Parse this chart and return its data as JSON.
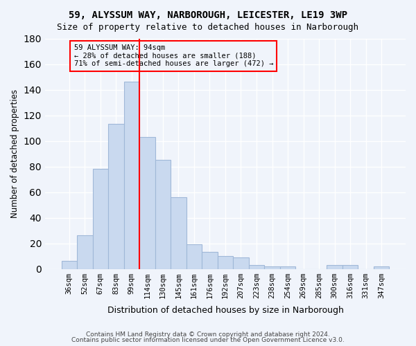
{
  "title1": "59, ALYSSUM WAY, NARBOROUGH, LEICESTER, LE19 3WP",
  "title2": "Size of property relative to detached houses in Narborough",
  "xlabel": "Distribution of detached houses by size in Narborough",
  "ylabel": "Number of detached properties",
  "bar_labels": [
    "36sqm",
    "52sqm",
    "67sqm",
    "83sqm",
    "99sqm",
    "114sqm",
    "130sqm",
    "145sqm",
    "161sqm",
    "176sqm",
    "192sqm",
    "207sqm",
    "223sqm",
    "238sqm",
    "254sqm",
    "269sqm",
    "285sqm",
    "300sqm",
    "316sqm",
    "331sqm",
    "347sqm"
  ],
  "bar_values": [
    6,
    26,
    78,
    113,
    146,
    103,
    85,
    56,
    19,
    13,
    10,
    9,
    3,
    2,
    2,
    0,
    0,
    3,
    3,
    0,
    2
  ],
  "bar_color": "#c9d9ef",
  "bar_edgecolor": "#a0b8d8",
  "vline_x": 4.5,
  "vline_color": "red",
  "annotation_text": "59 ALYSSUM WAY: 94sqm\n← 28% of detached houses are smaller (188)\n71% of semi-detached houses are larger (472) →",
  "annotation_box_edgecolor": "red",
  "ylim": [
    0,
    180
  ],
  "yticks": [
    0,
    20,
    40,
    60,
    80,
    100,
    120,
    140,
    160,
    180
  ],
  "footer1": "Contains HM Land Registry data © Crown copyright and database right 2024.",
  "footer2": "Contains public sector information licensed under the Open Government Licence v3.0.",
  "background_color": "#f0f4fb",
  "grid_color": "#ffffff"
}
